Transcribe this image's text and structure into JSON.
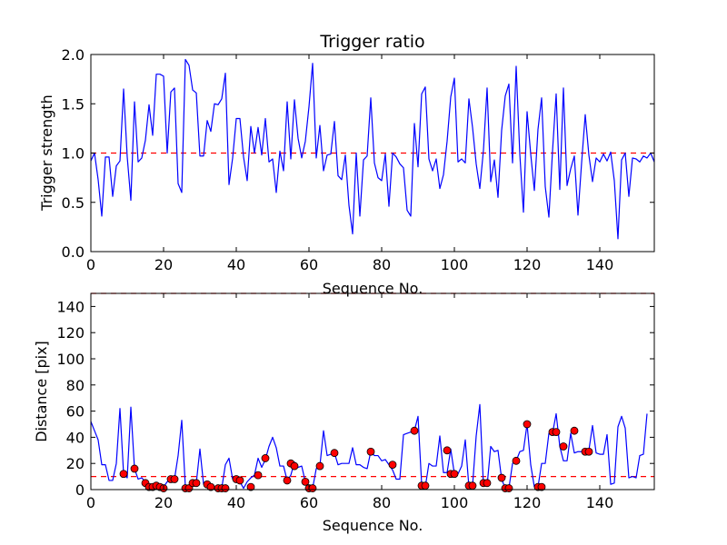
{
  "chart_data": [
    {
      "type": "line",
      "title": "Trigger ratio",
      "xlabel": "Sequence No.",
      "ylabel": "Trigger strength",
      "xlim": [
        0,
        155
      ],
      "ylim": [
        0.0,
        2.0
      ],
      "xticks": [
        0,
        20,
        40,
        60,
        80,
        100,
        120,
        140
      ],
      "yticks": [
        "0.0",
        "0.5",
        "1.0",
        "1.5",
        "2.0"
      ],
      "colors": {
        "line": "#0000ff",
        "threshold": "#ff0000"
      },
      "thresholds": [
        1.0
      ],
      "series": [
        {
          "name": "trigger_strength",
          "values": [
            0.92,
            1.0,
            0.73,
            0.36,
            0.96,
            0.96,
            0.56,
            0.87,
            0.92,
            1.65,
            0.96,
            0.52,
            1.52,
            0.91,
            0.95,
            1.13,
            1.49,
            1.18,
            1.8,
            1.8,
            1.78,
            1.0,
            1.62,
            1.66,
            0.69,
            0.6,
            1.95,
            1.89,
            1.64,
            1.61,
            0.97,
            0.97,
            1.33,
            1.22,
            1.5,
            1.49,
            1.55,
            1.81,
            0.68,
            0.95,
            1.35,
            1.35,
            0.96,
            0.72,
            1.27,
            1.0,
            1.26,
            0.98,
            1.35,
            0.91,
            0.94,
            0.6,
            1.02,
            0.82,
            1.52,
            0.94,
            1.54,
            1.15,
            0.95,
            1.12,
            1.47,
            1.91,
            0.95,
            1.28,
            0.82,
            0.98,
            0.99,
            1.32,
            0.77,
            0.73,
            0.98,
            0.47,
            0.18,
            1.0,
            0.36,
            0.93,
            0.97,
            1.56,
            0.9,
            0.75,
            0.72,
            0.99,
            0.46,
            1.0,
            0.96,
            0.89,
            0.85,
            0.42,
            0.36,
            1.3,
            0.86,
            1.6,
            1.67,
            0.94,
            0.82,
            0.94,
            0.64,
            0.78,
            1.12,
            1.57,
            1.76,
            0.91,
            0.94,
            0.9,
            1.55,
            1.26,
            0.89,
            0.64,
            1.03,
            1.66,
            0.71,
            0.93,
            0.55,
            1.23,
            1.58,
            1.7,
            0.9,
            1.88,
            0.99,
            0.4,
            1.42,
            0.99,
            0.62,
            1.24,
            1.56,
            0.66,
            0.35,
            1.02,
            1.6,
            0.63,
            1.66,
            0.67,
            0.84,
            0.97,
            0.37,
            0.9,
            1.39,
            0.98,
            0.71,
            0.95,
            0.91,
            0.99,
            0.92,
            1.01,
            0.72,
            0.13,
            0.93,
            1.0,
            0.56,
            0.95,
            0.94,
            0.91,
            0.97,
            0.95,
            1.0,
            0.91
          ]
        }
      ]
    },
    {
      "type": "line",
      "title": "",
      "xlabel": "Sequence No.",
      "ylabel": "Distance [pix]",
      "xlim": [
        0,
        155
      ],
      "ylim": [
        0,
        150
      ],
      "xticks": [
        0,
        20,
        40,
        60,
        80,
        100,
        120,
        140
      ],
      "yticks": [
        0,
        20,
        40,
        60,
        80,
        100,
        120,
        140
      ],
      "colors": {
        "line": "#0000ff",
        "threshold": "#ff0000",
        "marker": "#ff0000"
      },
      "thresholds": [
        150,
        10
      ],
      "series": [
        {
          "name": "distance",
          "values": [
            52,
            45,
            38,
            19,
            19,
            7,
            7,
            20,
            62,
            12,
            9,
            63,
            16,
            8,
            9,
            6,
            2,
            2,
            2,
            3,
            2,
            6,
            8,
            8,
            26,
            53,
            2,
            2,
            5,
            5,
            31,
            4,
            4,
            2,
            1,
            1,
            1,
            19,
            24,
            8,
            7,
            6,
            1,
            6,
            9,
            11,
            24,
            17,
            23,
            33,
            40,
            32,
            18,
            18,
            7,
            11,
            21,
            17,
            18,
            6,
            1,
            1,
            16,
            18,
            45,
            26,
            27,
            28,
            19,
            20,
            20,
            20,
            32,
            19,
            19,
            17,
            16,
            29,
            26,
            26,
            22,
            23,
            19,
            15,
            8,
            8,
            42,
            43,
            44,
            45,
            56,
            4,
            2,
            20,
            18,
            18,
            41,
            13,
            13,
            31,
            12,
            12,
            18,
            38,
            2,
            3,
            41,
            65,
            3,
            3,
            33,
            29,
            30,
            8,
            1,
            1,
            20,
            22,
            29,
            30,
            50,
            19,
            2,
            2,
            20,
            20,
            43,
            43,
            58,
            33,
            22,
            22,
            43,
            28,
            29,
            29,
            30,
            30,
            49,
            28,
            27,
            27,
            42,
            4,
            5,
            48,
            56,
            47,
            9,
            10,
            9,
            26,
            27,
            58
          ]
        },
        {
          "name": "flagged_points",
          "x": [
            9,
            12,
            15,
            16,
            17,
            18,
            19,
            20,
            22,
            23,
            26,
            27,
            28,
            29,
            32,
            33,
            35,
            36,
            37,
            40,
            41,
            44,
            46,
            48,
            54,
            55,
            56,
            59,
            60,
            61,
            63,
            67,
            77,
            83,
            89,
            91,
            92,
            98,
            99,
            100,
            104,
            105,
            108,
            109,
            113,
            114,
            115,
            117,
            120,
            123,
            124,
            127,
            128,
            130,
            133,
            136,
            137
          ],
          "values": [
            12,
            16,
            5,
            2,
            2,
            3,
            2,
            1,
            8,
            8,
            1,
            1,
            5,
            5,
            4,
            2,
            1,
            1,
            1,
            8,
            7,
            2,
            11,
            24,
            7,
            20,
            18,
            6,
            1,
            1,
            18,
            28,
            29,
            19,
            45,
            3,
            3,
            30,
            12,
            12,
            3,
            3,
            5,
            5,
            9,
            1,
            1,
            22,
            50,
            2,
            2,
            44,
            44,
            33,
            45,
            29,
            29
          ]
        }
      ]
    }
  ]
}
